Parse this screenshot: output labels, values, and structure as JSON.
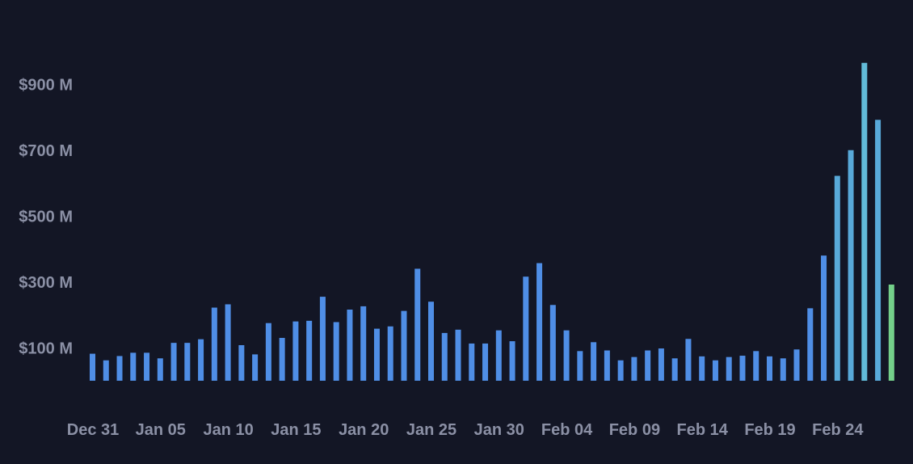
{
  "chart_data": {
    "type": "bar",
    "title": "",
    "xlabel": "",
    "ylabel": "",
    "ylim": [
      0,
      1000
    ],
    "y_unit": "M",
    "grid": false,
    "y_ticks": [
      {
        "value": 100,
        "label": "$100 M"
      },
      {
        "value": 300,
        "label": "$300 M"
      },
      {
        "value": 500,
        "label": "$500 M"
      },
      {
        "value": 700,
        "label": "$700 M"
      },
      {
        "value": 900,
        "label": "$900 M"
      }
    ],
    "x_ticks": [
      {
        "index": 0,
        "label": "Dec 31"
      },
      {
        "index": 5,
        "label": "Jan 05"
      },
      {
        "index": 10,
        "label": "Jan 10"
      },
      {
        "index": 15,
        "label": "Jan 15"
      },
      {
        "index": 20,
        "label": "Jan 20"
      },
      {
        "index": 25,
        "label": "Jan 25"
      },
      {
        "index": 30,
        "label": "Jan 30"
      },
      {
        "index": 35,
        "label": "Feb 04"
      },
      {
        "index": 40,
        "label": "Feb 09"
      },
      {
        "index": 45,
        "label": "Feb 14"
      },
      {
        "index": 50,
        "label": "Feb 19"
      },
      {
        "index": 55,
        "label": "Feb 24"
      }
    ],
    "categories": [
      "Dec 31",
      "Jan 01",
      "Jan 02",
      "Jan 03",
      "Jan 04",
      "Jan 05",
      "Jan 06",
      "Jan 07",
      "Jan 08",
      "Jan 09",
      "Jan 10",
      "Jan 11",
      "Jan 12",
      "Jan 13",
      "Jan 14",
      "Jan 15",
      "Jan 16",
      "Jan 17",
      "Jan 18",
      "Jan 19",
      "Jan 20",
      "Jan 21",
      "Jan 22",
      "Jan 23",
      "Jan 24",
      "Jan 25",
      "Jan 26",
      "Jan 27",
      "Jan 28",
      "Jan 29",
      "Jan 30",
      "Jan 31",
      "Feb 01",
      "Feb 02",
      "Feb 03",
      "Feb 04",
      "Feb 05",
      "Feb 06",
      "Feb 07",
      "Feb 08",
      "Feb 09",
      "Feb 10",
      "Feb 11",
      "Feb 12",
      "Feb 13",
      "Feb 14",
      "Feb 15",
      "Feb 16",
      "Feb 17",
      "Feb 18",
      "Feb 19",
      "Feb 20",
      "Feb 21",
      "Feb 22",
      "Feb 23",
      "Feb 24",
      "Feb 25",
      "Feb 26",
      "Feb 27",
      "Feb 28"
    ],
    "values": [
      82,
      62,
      75,
      85,
      85,
      68,
      115,
      115,
      126,
      222,
      232,
      108,
      80,
      175,
      130,
      180,
      182,
      255,
      178,
      216,
      226,
      158,
      165,
      212,
      340,
      240,
      145,
      155,
      113,
      113,
      153,
      120,
      316,
      357,
      230,
      153,
      90,
      117,
      92,
      62,
      72,
      92,
      98,
      68,
      127,
      74,
      62,
      72,
      76,
      90,
      74,
      68,
      95,
      220,
      380,
      622,
      700,
      965,
      792,
      292
    ],
    "colors": {
      "bar": "#4f8ee6",
      "bar_high": "#58a9d9",
      "bar_peak": "#62bbd8",
      "bar_current": "#74d08a",
      "tick_text": "#8b90a5",
      "background": "#131625"
    }
  }
}
